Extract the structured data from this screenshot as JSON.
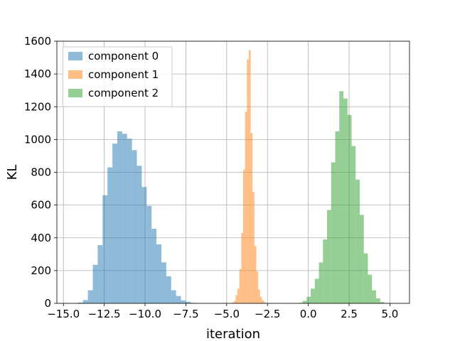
{
  "chart_data": {
    "type": "bar",
    "subtype": "histogram",
    "xlabel": "iteration",
    "ylabel": "KL",
    "xlim": [
      -15.4,
      6.2
    ],
    "ylim": [
      0,
      1600
    ],
    "xticks": [
      -15.0,
      -12.5,
      -10.0,
      -7.5,
      -5.0,
      -2.5,
      0.0,
      2.5,
      5.0
    ],
    "xtick_labels": [
      "−15.0",
      "−12.5",
      "−10.0",
      "−7.5",
      "−5.0",
      "−2.5",
      "0.0",
      "2.5",
      "5.0"
    ],
    "yticks": [
      0,
      200,
      400,
      600,
      800,
      1000,
      1200,
      1400,
      1600
    ],
    "ytick_labels": [
      "0",
      "200",
      "400",
      "600",
      "800",
      "1000",
      "1200",
      "1400",
      "1600"
    ],
    "grid": true,
    "legend": "top-left",
    "series": [
      {
        "name": "component 0",
        "color": "#1f77b4",
        "opacity": 0.5,
        "bin_start": -14.1,
        "bin_width": 0.3,
        "values": [
          5,
          20,
          80,
          235,
          355,
          660,
          830,
          975,
          1050,
          1035,
          1005,
          935,
          840,
          710,
          595,
          455,
          360,
          250,
          165,
          80,
          45,
          18,
          10,
          3
        ]
      },
      {
        "name": "component 1",
        "color": "#ff7f0e",
        "opacity": 0.5,
        "bin_start": -4.68,
        "bin_width": 0.115,
        "values": [
          5,
          15,
          50,
          90,
          210,
          430,
          815,
          1170,
          1490,
          1545,
          1040,
          680,
          350,
          195,
          85,
          40,
          18,
          8
        ]
      },
      {
        "name": "component 2",
        "color": "#2ca02c",
        "opacity": 0.5,
        "bin_start": -0.6,
        "bin_width": 0.25,
        "values": [
          3,
          15,
          40,
          90,
          150,
          250,
          390,
          570,
          860,
          1050,
          1295,
          1250,
          1150,
          960,
          755,
          540,
          305,
          175,
          80,
          30,
          8
        ]
      }
    ]
  }
}
